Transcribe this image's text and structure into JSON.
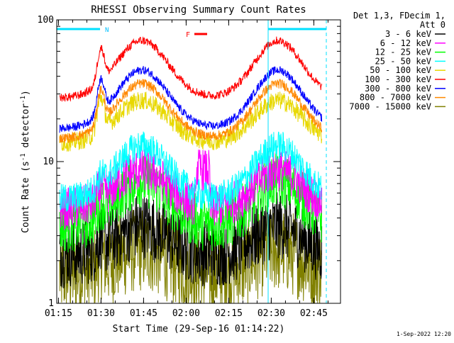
{
  "chart_data": {
    "type": "line",
    "title": "RHESSI Observing Summary Count Rates",
    "xlabel": "Start Time (29-Sep-16 01:14:22)",
    "ylabel_main": "Count Rate (s",
    "ylabel_sup": "-1",
    "ylabel_tail": " detector",
    "ylabel_sup2": "-1",
    "ylabel_end": ")",
    "yscale": "log",
    "ylim": [
      1,
      100
    ],
    "xlim_minutes": [
      0,
      100
    ],
    "x_tick_labels": [
      "01:15",
      "01:30",
      "01:45",
      "02:00",
      "02:15",
      "02:30",
      "02:45"
    ],
    "x_tick_minutes": [
      0.6,
      15.6,
      30.6,
      45.6,
      60.6,
      75.6,
      90.6
    ],
    "y_tick_labels": [
      "1",
      "10",
      "100"
    ],
    "y_tick_values": [
      1,
      10,
      100
    ],
    "legend_header": [
      "Det 1,3, FDecim 1,",
      "Att 0"
    ],
    "legend_position": "outside-right",
    "series": [
      {
        "name": "3 - 6 keV",
        "color": "#000000",
        "level": 2.2,
        "amp": 1.6,
        "noise": 0.55
      },
      {
        "name": "6 - 12 keV",
        "color": "#ff00ff",
        "level": 4.6,
        "amp": 1.9,
        "noise": 0.35
      },
      {
        "name": "12 - 25 keV",
        "color": "#00ff00",
        "level": 3.5,
        "amp": 2.1,
        "noise": 0.45
      },
      {
        "name": "25 - 50 keV",
        "color": "#00ffff",
        "level": 5.4,
        "amp": 2.4,
        "noise": 0.25
      },
      {
        "name": "50 - 100 keV",
        "color": "#e8d800",
        "level": 13.5,
        "amp": 2.0,
        "noise": 0.15
      },
      {
        "name": "100 - 300 keV",
        "color": "#ff0000",
        "level": 28.0,
        "amp": 2.55,
        "noise": 0.07
      },
      {
        "name": "300 - 800 keV",
        "color": "#0000ff",
        "level": 17.0,
        "amp": 2.6,
        "noise": 0.07
      },
      {
        "name": "800 - 7000 keV",
        "color": "#ff8800",
        "level": 14.5,
        "amp": 2.45,
        "noise": 0.08
      },
      {
        "name": "7000 - 15000 keV",
        "color": "#808000",
        "level": 1.6,
        "amp": 1.5,
        "noise": 0.7
      }
    ],
    "annotations": {
      "N_label": "N",
      "F_label": "F",
      "night_start_min": 0.0,
      "night_end_min": 16.5,
      "night2_start_min": 74.5,
      "night2_end_min": 95.0,
      "flare_start_min": 48.5,
      "flare_end_min": 53.0,
      "vline1_min": 74.5,
      "vline2_min": 95.0
    }
  },
  "footer": {
    "timestamp": "1-Sep-2022 12:20"
  }
}
